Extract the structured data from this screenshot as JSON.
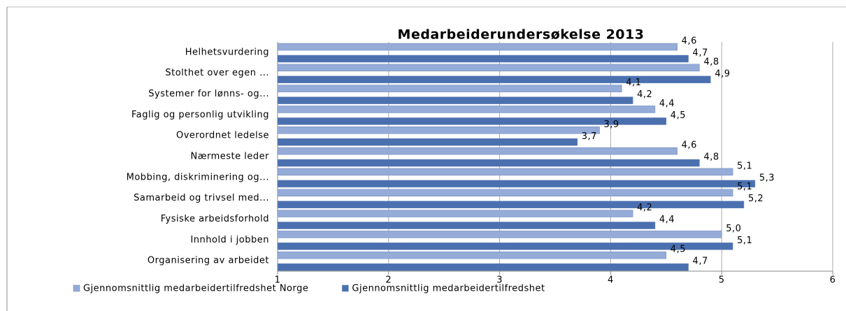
{
  "chart_data": {
    "type": "hbar",
    "title": "Medarbeiderundersøkelse 2013",
    "categories": [
      "Helhetsvurdering",
      "Stolthet over egen ...",
      "Systemer for lønns- og...",
      "Faglig og personlig utvikling",
      "Overordnet ledelse",
      "Nærmeste leder",
      "Mobbing, diskriminering og...",
      "Samarbeid og trivsel med...",
      "Fysiske arbeidsforhold",
      "Innhold i jobben",
      "Organisering av arbeidet"
    ],
    "series": [
      {
        "name": "Gjennomsnittlig medarbeidertilfredshet Norge",
        "color": "#95abd8",
        "values": [
          4.6,
          4.8,
          4.1,
          4.4,
          3.9,
          4.6,
          5.1,
          5.1,
          4.2,
          5.0,
          4.5
        ],
        "value_labels": [
          "4,6",
          "4,8",
          "4,1",
          "4,4",
          "3,9",
          "4,6",
          "5,1",
          "5,1",
          "4,2",
          "5,0",
          "4,5"
        ]
      },
      {
        "name": "Gjennomsnittlig medarbeidertilfredshet",
        "color": "#4b70b0",
        "values": [
          4.7,
          4.9,
          4.2,
          4.5,
          3.7,
          4.8,
          5.3,
          5.2,
          4.4,
          5.1,
          4.7
        ],
        "value_labels": [
          "4,7",
          "4,9",
          "4,2",
          "4,5",
          "3,7",
          "4,8",
          "5,3",
          "5,2",
          "4,4",
          "5,1",
          "4,7"
        ]
      }
    ],
    "xlim": [
      1,
      6
    ],
    "xticks": [
      1,
      2,
      3,
      4,
      5,
      6
    ],
    "grid": true,
    "legend": "bottom"
  }
}
